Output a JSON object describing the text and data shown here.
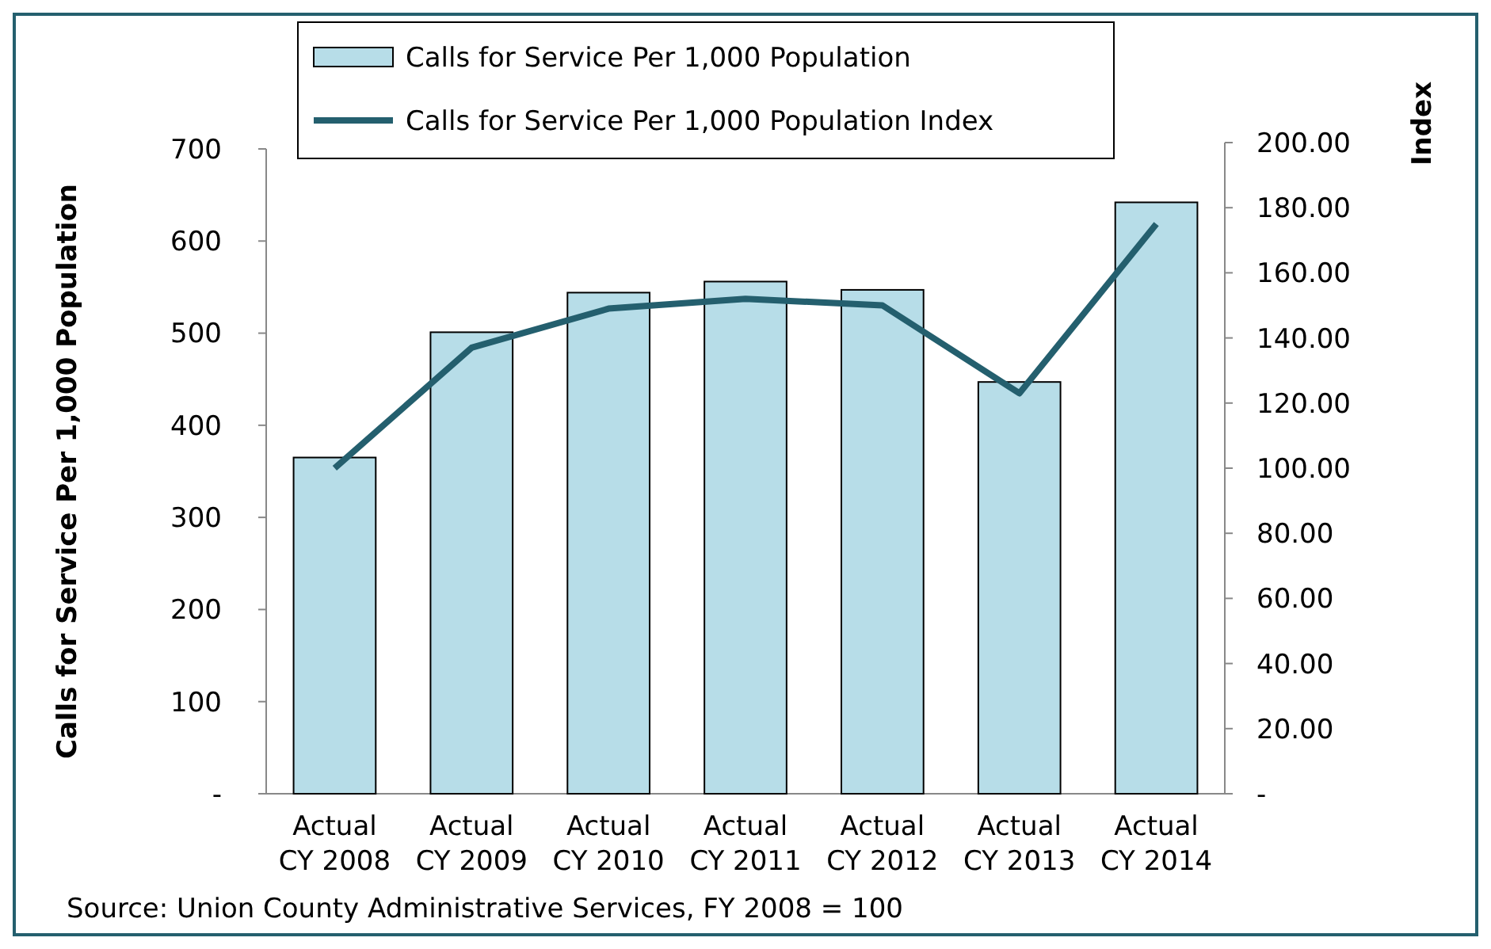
{
  "chart_data": {
    "type": "bar",
    "ylabel": "Calls for Service Per 1,000 Population",
    "y2label": "Index",
    "categories": [
      "Actual CY 2008",
      "Actual CY 2009",
      "Actual CY 2010",
      "Actual CY 2011",
      "Actual CY 2012",
      "Actual CY 2013",
      "Actual CY 2014"
    ],
    "series": [
      {
        "name": "Calls for Service Per 1,000 Population",
        "color": "#b7dde8",
        "values": [
          365,
          501,
          544,
          556,
          547,
          447,
          642
        ]
      },
      {
        "name": "Calls for Service Per 1,000 Population Index",
        "type": "line",
        "axis": "y2",
        "color": "#245f6e",
        "values": [
          100,
          137,
          149,
          152,
          150,
          123,
          175
        ]
      }
    ],
    "ylim": [
      0,
      700
    ],
    "yticks": [
      {
        "value": 0,
        "label": "-"
      },
      100,
      200,
      300,
      400,
      500,
      600,
      700
    ],
    "y2lim": [
      0,
      200
    ],
    "y2ticks": [
      {
        "value": 0,
        "label": "-"
      },
      {
        "value": 20,
        "label": "20.00"
      },
      {
        "value": 40,
        "label": "40.00"
      },
      {
        "value": 60,
        "label": "60.00"
      },
      {
        "value": 80,
        "label": "80.00"
      },
      {
        "value": 100,
        "label": "100.00"
      },
      {
        "value": 120,
        "label": "120.00"
      },
      {
        "value": 140,
        "label": "140.00"
      },
      {
        "value": 160,
        "label": "160.00"
      },
      {
        "value": 180,
        "label": "180.00"
      },
      {
        "value": 200,
        "label": "200.00"
      }
    ],
    "legend": "top",
    "marker": "none",
    "annotations": [
      "Source: Union County Administrative Services, FY 2008 = 100"
    ]
  }
}
